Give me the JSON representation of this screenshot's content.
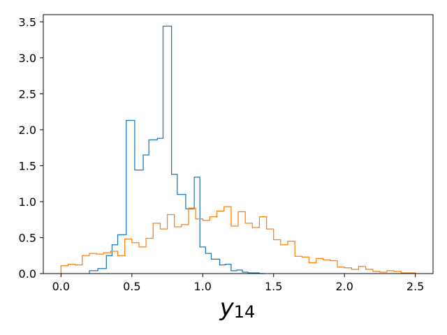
{
  "chart_data": {
    "type": "histogram",
    "xlabel": "y",
    "xlabel_subscript": "14",
    "xlim": [
      -0.125,
      2.625
    ],
    "ylim": [
      0,
      3.6
    ],
    "xticks": [
      0.0,
      0.5,
      1.0,
      1.5,
      2.0,
      2.5
    ],
    "xtick_labels": [
      "0.0",
      "0.5",
      "1.0",
      "1.5",
      "2.0",
      "2.5"
    ],
    "yticks": [
      0.0,
      0.5,
      1.0,
      1.5,
      2.0,
      2.5,
      3.0,
      3.5
    ],
    "ytick_labels": [
      "0.0",
      "0.5",
      "1.0",
      "1.5",
      "2.0",
      "2.5",
      "3.0",
      "3.5"
    ],
    "grid": false,
    "series": [
      {
        "color": "#1f77b4",
        "style": "step",
        "x": [
          0.2,
          0.24,
          0.26,
          0.3,
          0.32,
          0.36,
          0.4,
          0.44,
          0.46,
          0.5,
          0.52,
          0.56,
          0.58,
          0.6,
          0.62,
          0.66,
          0.68,
          0.7,
          0.72,
          0.76,
          0.78,
          0.8,
          0.82,
          0.86,
          0.88,
          0.92,
          0.94,
          0.96,
          0.98,
          1.02,
          1.06,
          1.08,
          1.12,
          1.16,
          1.2,
          1.24,
          1.28,
          1.32,
          1.36,
          1.4
        ],
        "values": [
          0.04,
          0.04,
          0.07,
          0.07,
          0.25,
          0.4,
          0.54,
          0.54,
          2.13,
          2.13,
          1.44,
          1.44,
          1.65,
          1.65,
          1.86,
          1.86,
          1.88,
          1.88,
          3.44,
          3.44,
          1.38,
          1.38,
          1.1,
          1.1,
          0.9,
          0.9,
          1.34,
          1.34,
          0.37,
          0.28,
          0.2,
          0.2,
          0.12,
          0.13,
          0.04,
          0.05,
          0.02,
          0.01,
          0.01,
          0.0
        ]
      },
      {
        "color": "#ff7f0e",
        "style": "step",
        "x": [
          0.0,
          0.05,
          0.1,
          0.15,
          0.2,
          0.25,
          0.3,
          0.35,
          0.4,
          0.45,
          0.5,
          0.55,
          0.6,
          0.65,
          0.7,
          0.75,
          0.8,
          0.85,
          0.9,
          0.95,
          1.0,
          1.05,
          1.1,
          1.15,
          1.2,
          1.25,
          1.3,
          1.35,
          1.4,
          1.45,
          1.5,
          1.55,
          1.6,
          1.65,
          1.7,
          1.75,
          1.8,
          1.85,
          1.9,
          1.95,
          2.0,
          2.05,
          2.1,
          2.15,
          2.2,
          2.25,
          2.3,
          2.35,
          2.4,
          2.45
        ],
        "values": [
          0.11,
          0.13,
          0.12,
          0.25,
          0.28,
          0.27,
          0.29,
          0.31,
          0.25,
          0.48,
          0.43,
          0.37,
          0.49,
          0.7,
          0.62,
          0.82,
          0.65,
          0.68,
          0.91,
          0.76,
          0.74,
          0.79,
          0.87,
          0.93,
          0.66,
          0.86,
          0.7,
          0.64,
          0.79,
          0.62,
          0.47,
          0.4,
          0.45,
          0.24,
          0.23,
          0.15,
          0.21,
          0.19,
          0.18,
          0.09,
          0.08,
          0.06,
          0.1,
          0.06,
          0.03,
          0.02,
          0.04,
          0.03,
          0.01,
          0.01
        ]
      }
    ]
  }
}
